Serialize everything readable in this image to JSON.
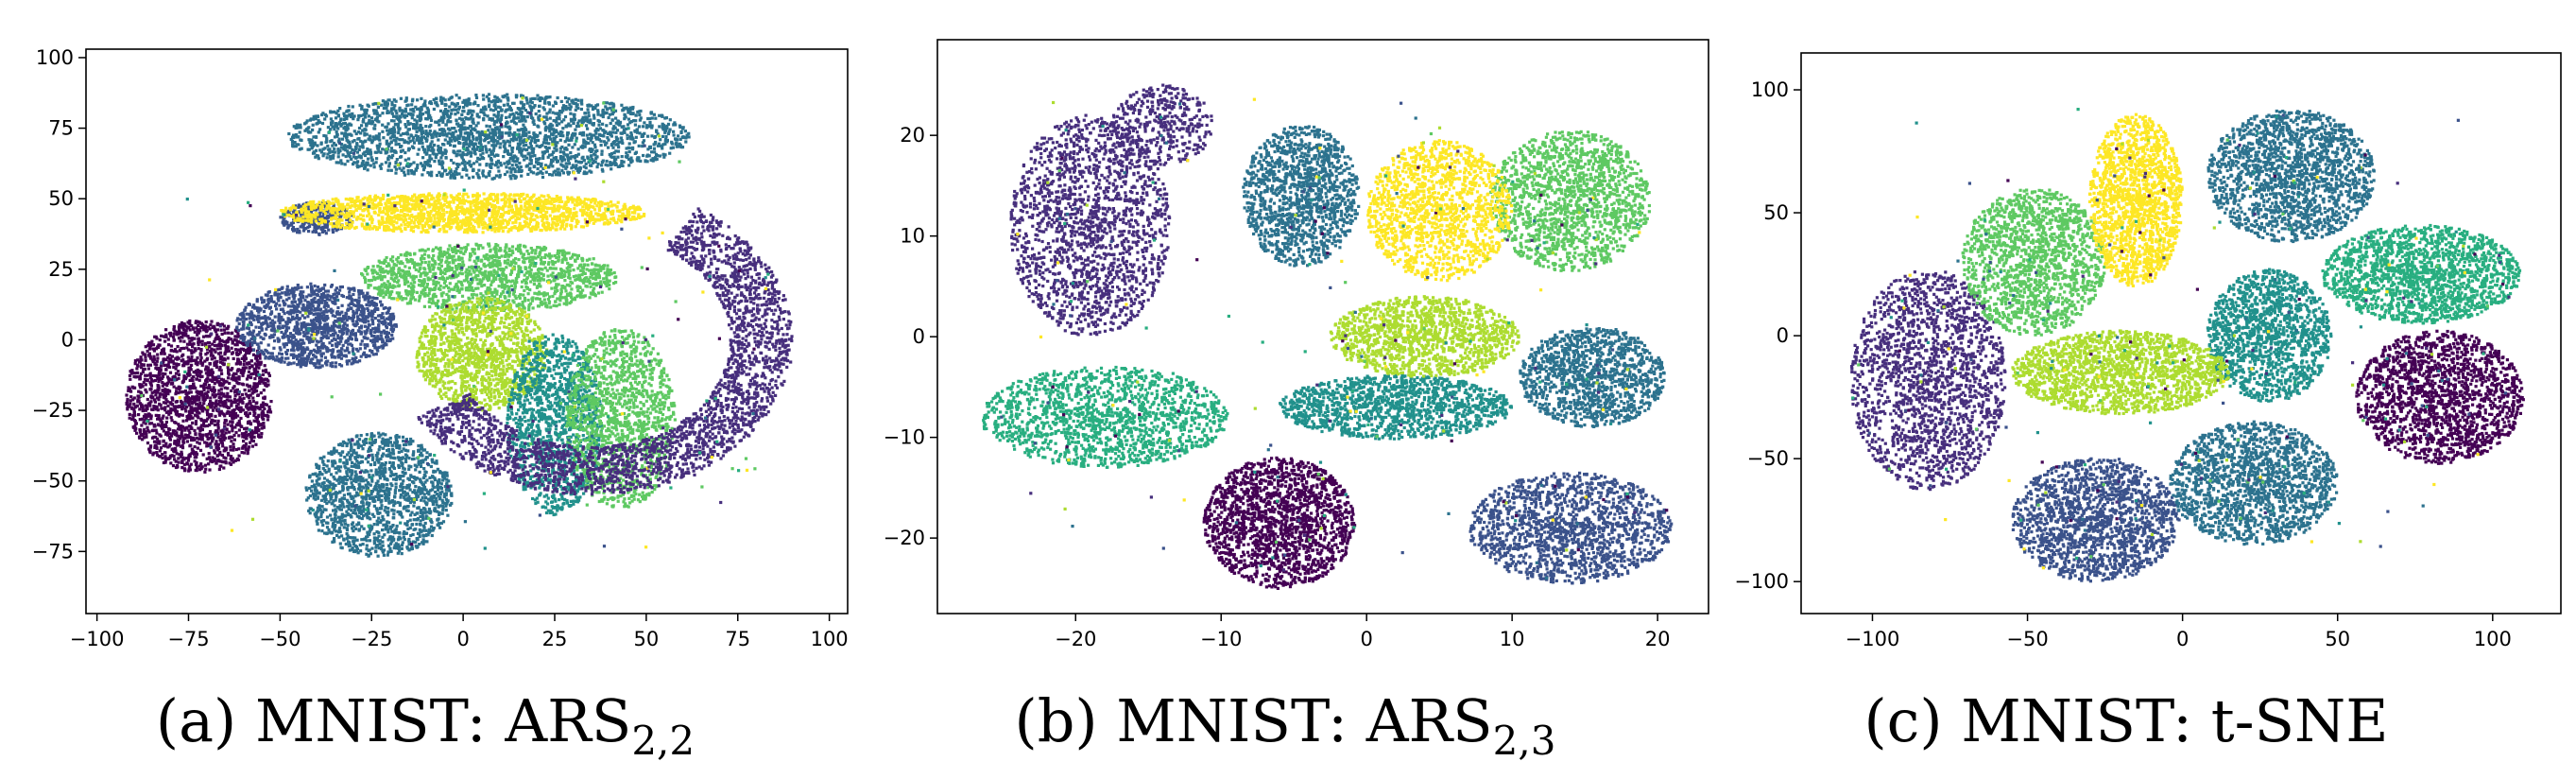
{
  "figure": {
    "captions": [
      {
        "prefix": "(a) MNIST: ARS",
        "subscript": "2,2"
      },
      {
        "prefix": "(b) MNIST: ARS",
        "subscript": "2,3"
      },
      {
        "prefix": "(c) MNIST: t-SNE",
        "subscript": ""
      }
    ]
  },
  "palette": [
    "#440154",
    "#472f7d",
    "#3b528b",
    "#2c728e",
    "#21918c",
    "#28ae80",
    "#5ec962",
    "#addc30",
    "#fde725"
  ],
  "chart_data": [
    {
      "type": "scatter",
      "title": "",
      "xlabel": "",
      "ylabel": "",
      "xlim": [
        -103,
        105
      ],
      "ylim": [
        -97,
        103
      ],
      "xticks": [
        -100,
        -75,
        -50,
        -25,
        0,
        25,
        50,
        75,
        100
      ],
      "yticks": [
        -75,
        -50,
        -25,
        0,
        25,
        50,
        75,
        100
      ],
      "grid": false,
      "clusters": [
        {
          "kind": "ellipse",
          "cx": -72,
          "cy": -20,
          "rx": 20,
          "ry": 27,
          "color": 0,
          "n": 1900
        },
        {
          "kind": "ellipse",
          "cx": -40,
          "cy": 5,
          "rx": 22,
          "ry": 15,
          "color": 2,
          "n": 1300
        },
        {
          "kind": "ellipse",
          "cx": -40,
          "cy": 43,
          "rx": 10,
          "ry": 6,
          "color": 2,
          "n": 300
        },
        {
          "kind": "ellipse",
          "cx": -23,
          "cy": -55,
          "rx": 20,
          "ry": 22,
          "color": 3,
          "n": 1400
        },
        {
          "kind": "ellipse",
          "cx": 7,
          "cy": 72,
          "rx": 55,
          "ry": 15,
          "color": 3,
          "n": 2400
        },
        {
          "kind": "ellipse",
          "cx": 0,
          "cy": 45,
          "rx": 50,
          "ry": 7,
          "color": 8,
          "n": 1700
        },
        {
          "kind": "ellipse",
          "cx": 7,
          "cy": 22,
          "rx": 35,
          "ry": 12,
          "color": 6,
          "n": 1400
        },
        {
          "kind": "ellipse",
          "cx": 5,
          "cy": -5,
          "rx": 18,
          "ry": 20,
          "color": 7,
          "n": 1300
        },
        {
          "kind": "ellipse",
          "cx": 25,
          "cy": -30,
          "rx": 13,
          "ry": 32,
          "color": 4,
          "n": 1300
        },
        {
          "kind": "ellipse",
          "cx": 43,
          "cy": -28,
          "rx": 15,
          "ry": 32,
          "color": 6,
          "n": 1300
        },
        {
          "kind": "arc",
          "cx": 35,
          "cy": 0,
          "r1": 38,
          "r2": 55,
          "t1": -150,
          "t2": 58,
          "color": 1,
          "n": 2500
        }
      ]
    },
    {
      "type": "scatter",
      "title": "",
      "xlabel": "",
      "ylabel": "",
      "xlim": [
        -29.5,
        23.5
      ],
      "ylim": [
        -27.5,
        29.5
      ],
      "xticks": [
        -20,
        -10,
        0,
        10,
        20
      ],
      "yticks": [
        -20,
        -10,
        0,
        10,
        20
      ],
      "grid": false,
      "clusters": [
        {
          "kind": "ellipse",
          "cx": -6,
          "cy": -18.5,
          "rx": 5.2,
          "ry": 6.5,
          "color": 0,
          "n": 1700
        },
        {
          "kind": "ellipse",
          "cx": -19,
          "cy": 11,
          "rx": 5.5,
          "ry": 11,
          "color": 1,
          "n": 1700
        },
        {
          "kind": "ellipse",
          "cx": -14,
          "cy": 21,
          "rx": 3.5,
          "ry": 4,
          "color": 1,
          "n": 400
        },
        {
          "kind": "ellipse",
          "cx": 14,
          "cy": -19,
          "rx": 7,
          "ry": 5.5,
          "color": 2,
          "n": 1500
        },
        {
          "kind": "ellipse",
          "cx": -4.5,
          "cy": 14,
          "rx": 4,
          "ry": 7,
          "color": 3,
          "n": 1300
        },
        {
          "kind": "ellipse",
          "cx": 15.5,
          "cy": -4,
          "rx": 5,
          "ry": 5,
          "color": 3,
          "n": 1200
        },
        {
          "kind": "ellipse",
          "cx": 2,
          "cy": -7,
          "rx": 8,
          "ry": 3.2,
          "color": 4,
          "n": 1300
        },
        {
          "kind": "ellipse",
          "cx": -18,
          "cy": -8,
          "rx": 8.5,
          "ry": 5,
          "color": 5,
          "n": 1500
        },
        {
          "kind": "ellipse",
          "cx": 14,
          "cy": 13.5,
          "rx": 5.5,
          "ry": 7,
          "color": 6,
          "n": 1500
        },
        {
          "kind": "ellipse",
          "cx": 4,
          "cy": 0,
          "rx": 6.5,
          "ry": 4,
          "color": 7,
          "n": 1300
        },
        {
          "kind": "ellipse",
          "cx": 5,
          "cy": 12.5,
          "rx": 5,
          "ry": 7,
          "color": 8,
          "n": 1400
        }
      ]
    },
    {
      "type": "scatter",
      "title": "",
      "xlabel": "",
      "ylabel": "",
      "xlim": [
        -123,
        122
      ],
      "ylim": [
        -113,
        115
      ],
      "xticks": [
        -100,
        -50,
        0,
        50,
        100
      ],
      "yticks": [
        -100,
        -50,
        0,
        50,
        100
      ],
      "grid": false,
      "clusters": [
        {
          "kind": "ellipse",
          "cx": 83,
          "cy": -25,
          "rx": 27,
          "ry": 27,
          "color": 0,
          "n": 1700
        },
        {
          "kind": "ellipse",
          "cx": -82,
          "cy": -18,
          "rx": 25,
          "ry": 45,
          "color": 1,
          "n": 1800
        },
        {
          "kind": "ellipse",
          "cx": -28,
          "cy": -75,
          "rx": 27,
          "ry": 25,
          "color": 2,
          "n": 1600
        },
        {
          "kind": "ellipse",
          "cx": 23,
          "cy": -60,
          "rx": 27,
          "ry": 25,
          "color": 3,
          "n": 1600
        },
        {
          "kind": "ellipse",
          "cx": 35,
          "cy": 65,
          "rx": 27,
          "ry": 27,
          "color": 3,
          "n": 1700
        },
        {
          "kind": "ellipse",
          "cx": 28,
          "cy": 0,
          "rx": 20,
          "ry": 27,
          "color": 4,
          "n": 1400
        },
        {
          "kind": "ellipse",
          "cx": 77,
          "cy": 25,
          "rx": 32,
          "ry": 20,
          "color": 5,
          "n": 1700
        },
        {
          "kind": "ellipse",
          "cx": -48,
          "cy": 30,
          "rx": 23,
          "ry": 30,
          "color": 6,
          "n": 1500
        },
        {
          "kind": "ellipse",
          "cx": -20,
          "cy": -15,
          "rx": 35,
          "ry": 17,
          "color": 7,
          "n": 1700
        },
        {
          "kind": "ellipse",
          "cx": -15,
          "cy": 55,
          "rx": 15,
          "ry": 35,
          "color": 8,
          "n": 1600
        }
      ]
    }
  ]
}
